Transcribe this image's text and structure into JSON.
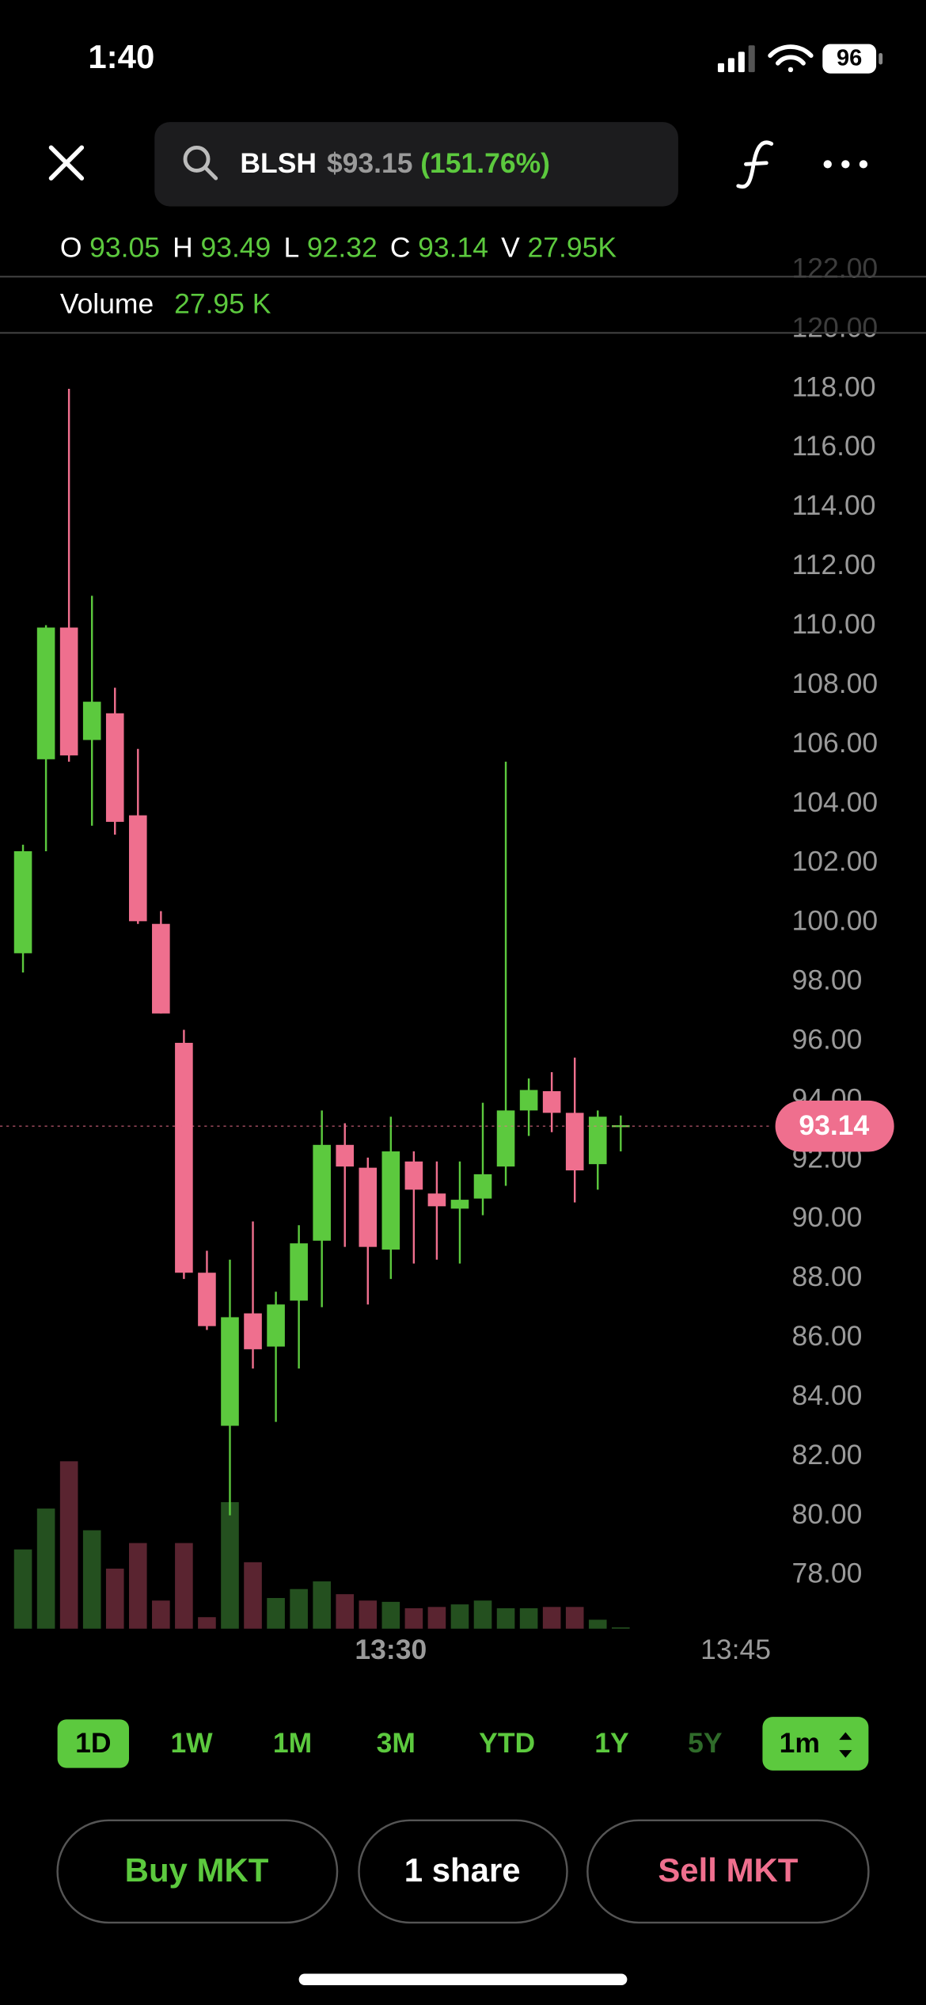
{
  "status_bar": {
    "time": "1:40",
    "battery": "96"
  },
  "header": {
    "symbol": "BLSH",
    "price": "$93.15",
    "change": "(151.76%)"
  },
  "ohlc": [
    {
      "label": "O",
      "value": "93.05"
    },
    {
      "label": "H",
      "value": "93.49"
    },
    {
      "label": "L",
      "value": "92.32"
    },
    {
      "label": "C",
      "value": "93.14"
    },
    {
      "label": "V",
      "value": "27.95K"
    }
  ],
  "volume_row": {
    "label": "Volume",
    "value": "27.95 K"
  },
  "chart_data": {
    "type": "candlestick",
    "x": [
      "13:14",
      "13:15",
      "13:16",
      "13:17",
      "13:18",
      "13:19",
      "13:20",
      "13:21",
      "13:22",
      "13:23",
      "13:24",
      "13:25",
      "13:26",
      "13:27",
      "13:28",
      "13:29",
      "13:30",
      "13:31",
      "13:32",
      "13:33",
      "13:34",
      "13:35",
      "13:36",
      "13:37",
      "13:38",
      "13:39",
      "13:40"
    ],
    "open": [
      98.97,
      105.51,
      109.95,
      106.16,
      107.06,
      103.62,
      99.96,
      95.95,
      88.2,
      83.04,
      86.83,
      85.71,
      87.26,
      89.28,
      92.51,
      91.74,
      88.98,
      91.95,
      90.87,
      90.36,
      90.7,
      91.78,
      93.67,
      94.32,
      93.59,
      91.86,
      93.14
    ],
    "high": [
      102.63,
      110.03,
      118.0,
      111.02,
      107.92,
      105.86,
      100.39,
      96.39,
      88.94,
      88.64,
      89.93,
      87.56,
      89.8,
      93.67,
      93.24,
      92.08,
      93.46,
      92.29,
      91.95,
      91.95,
      93.93,
      105.43,
      94.75,
      94.96,
      95.45,
      93.67,
      93.5
    ],
    "low": [
      98.32,
      102.41,
      105.43,
      103.27,
      102.97,
      99.96,
      96.94,
      87.99,
      86.27,
      80.02,
      84.97,
      83.17,
      84.97,
      87.04,
      89.07,
      87.13,
      87.99,
      88.51,
      88.64,
      88.51,
      90.14,
      91.13,
      92.81,
      92.94,
      90.57,
      91.0,
      92.29
    ],
    "close": [
      102.41,
      109.95,
      105.64,
      107.45,
      103.4,
      100.05,
      96.94,
      88.2,
      86.4,
      86.7,
      85.62,
      87.13,
      89.19,
      92.51,
      91.78,
      89.07,
      92.29,
      91.0,
      90.44,
      90.66,
      91.52,
      93.67,
      94.36,
      93.59,
      91.65,
      93.46,
      93.14
    ],
    "volume": [
      62,
      94,
      131,
      77,
      47,
      67,
      22,
      67,
      9,
      99,
      52,
      24,
      31,
      37,
      27,
      22,
      21,
      16,
      17,
      19,
      22,
      16,
      16,
      17,
      17,
      7,
      1
    ],
    "volume_ylim": [
      0,
      140
    ],
    "up_color": "#5cc93e",
    "down_color": "#ef6f8e",
    "up_volume_color": "#24501f",
    "down_volume_color": "#5a2430",
    "ylim": [
      76.2,
      122.9
    ],
    "yticks": [
      {
        "value": 78,
        "label": "78.00"
      },
      {
        "value": 80,
        "label": "80.00"
      },
      {
        "value": 82,
        "label": "82.00"
      },
      {
        "value": 84,
        "label": "84.00"
      },
      {
        "value": 86,
        "label": "86.00"
      },
      {
        "value": 88,
        "label": "88.00"
      },
      {
        "value": 90,
        "label": "90.00"
      },
      {
        "value": 92,
        "label": "92.00"
      },
      {
        "value": 94,
        "label": "94.00"
      },
      {
        "value": 96,
        "label": "96.00"
      },
      {
        "value": 98,
        "label": "98.00"
      },
      {
        "value": 100,
        "label": "100.00"
      },
      {
        "value": 102,
        "label": "102.00"
      },
      {
        "value": 104,
        "label": "104.00"
      },
      {
        "value": 106,
        "label": "106.00"
      },
      {
        "value": 108,
        "label": "108.00"
      },
      {
        "value": 110,
        "label": "110.00"
      },
      {
        "value": 112,
        "label": "112.00"
      },
      {
        "value": 114,
        "label": "114.00"
      },
      {
        "value": 116,
        "label": "116.00"
      },
      {
        "value": 118,
        "label": "118.00"
      },
      {
        "value": 120,
        "label": "120.00"
      },
      {
        "value": 122,
        "label": "122.00"
      }
    ],
    "xlim": [
      "13:13",
      "13:47"
    ],
    "xticks": [
      "13:30",
      "13:45"
    ],
    "last_price": 93.14
  },
  "ranges": [
    "1D",
    "1W",
    "1M",
    "3M",
    "YTD",
    "1Y",
    "5Y"
  ],
  "selected_range": "1D",
  "disabled_ranges": [
    "5Y"
  ],
  "interval": "1m",
  "actions": {
    "buy": "Buy MKT",
    "quantity": "1 share",
    "sell": "Sell MKT"
  }
}
